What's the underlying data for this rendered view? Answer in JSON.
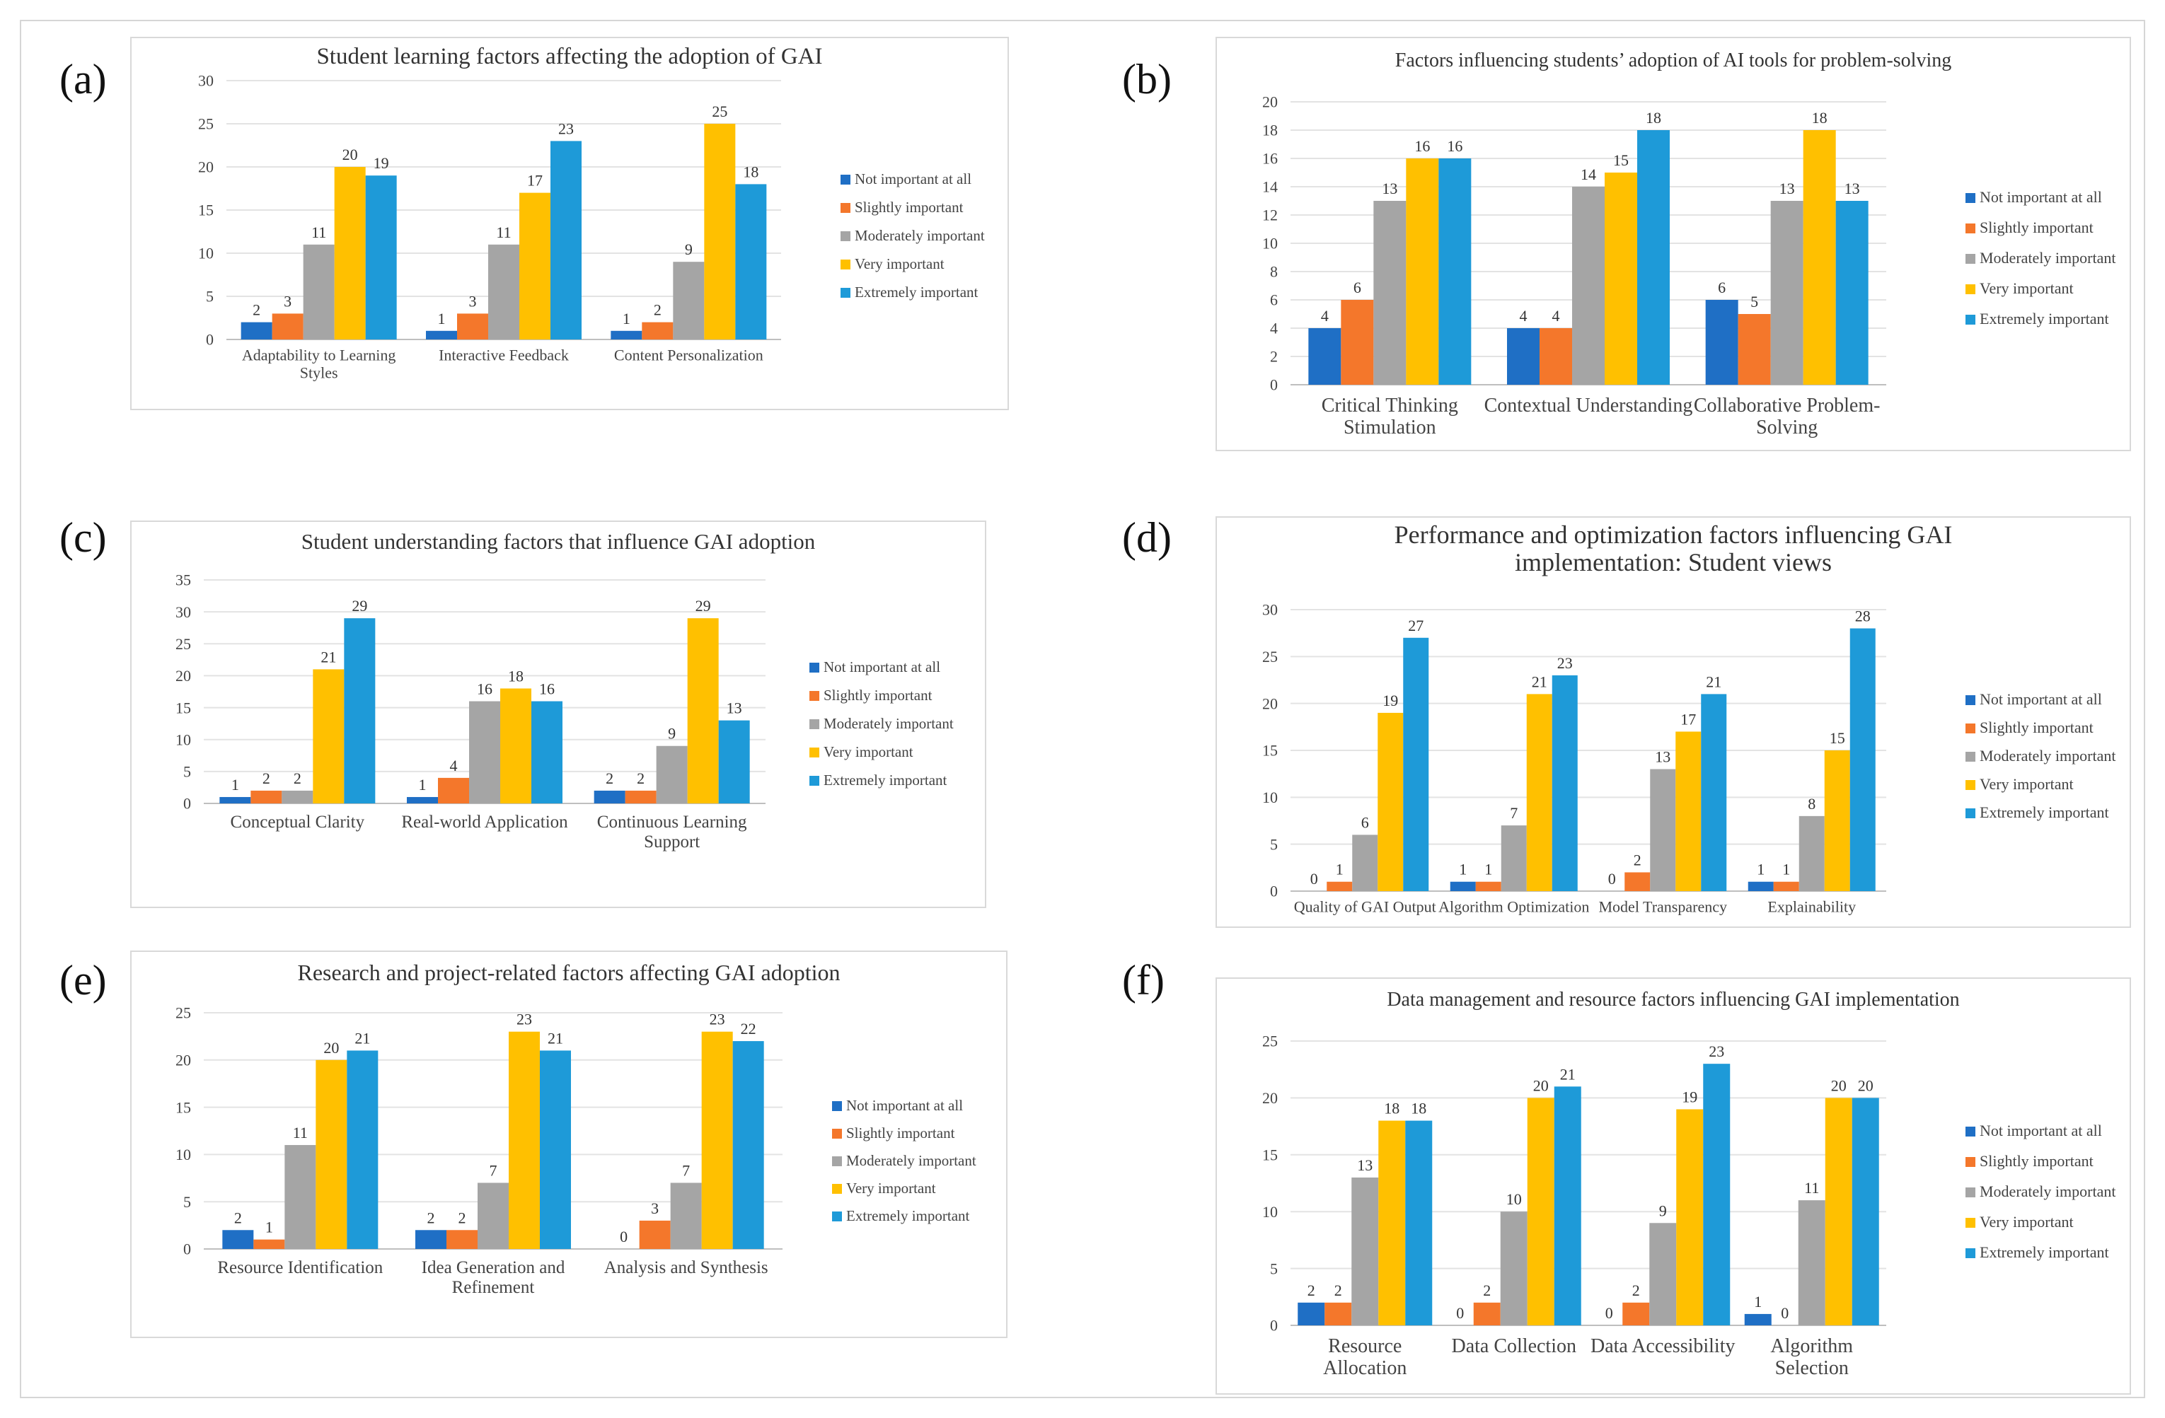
{
  "legend": {
    "labels": [
      "Not important at all",
      "Slightly important",
      "Moderately important",
      "Very important",
      "Extremely important"
    ],
    "colors": [
      "#1f6fc5",
      "#f4772b",
      "#a5a5a5",
      "#ffc000",
      "#1e9ad8"
    ]
  },
  "panels": [
    {
      "label": "(a)",
      "chart_data": {
        "type": "bar",
        "title": [
          "Student learning factors affecting the adoption of GAI"
        ],
        "categories": [
          [
            "Adaptability to Learning",
            "Styles"
          ],
          [
            "Interactive Feedback"
          ],
          [
            "Content Personalization"
          ]
        ],
        "series": [
          {
            "name": "Not important at all",
            "values": [
              2,
              1,
              1
            ]
          },
          {
            "name": "Slightly important",
            "values": [
              3,
              3,
              2
            ]
          },
          {
            "name": "Moderately important",
            "values": [
              11,
              11,
              9
            ]
          },
          {
            "name": "Very important",
            "values": [
              20,
              17,
              25
            ]
          },
          {
            "name": "Extremely important",
            "values": [
              19,
              23,
              18
            ]
          }
        ],
        "ylim": [
          0,
          30
        ],
        "yticks": [
          0,
          5,
          10,
          15,
          20,
          25,
          30
        ],
        "xlabel": "",
        "ylabel": "",
        "legend": "right"
      }
    },
    {
      "label": "(b)",
      "chart_data": {
        "type": "bar",
        "title": [
          "Factors influencing students’ adoption of AI tools for problem-solving"
        ],
        "categories": [
          [
            "Critical Thinking",
            "Stimulation"
          ],
          [
            "Contextual Understanding"
          ],
          [
            "Collaborative Problem-",
            "Solving"
          ]
        ],
        "series": [
          {
            "name": "Not important at all",
            "values": [
              4,
              4,
              6
            ]
          },
          {
            "name": "Slightly important",
            "values": [
              6,
              4,
              5
            ]
          },
          {
            "name": "Moderately important",
            "values": [
              13,
              14,
              13
            ]
          },
          {
            "name": "Very important",
            "values": [
              16,
              15,
              18
            ]
          },
          {
            "name": "Extremely important",
            "values": [
              16,
              18,
              13
            ]
          }
        ],
        "ylim": [
          0,
          20
        ],
        "yticks": [
          0,
          2,
          4,
          6,
          8,
          10,
          12,
          14,
          16,
          18,
          20
        ],
        "xlabel": "",
        "ylabel": "",
        "legend": "right"
      }
    },
    {
      "label": "(c)",
      "chart_data": {
        "type": "bar",
        "title": [
          "Student understanding factors that influence GAI adoption"
        ],
        "categories": [
          [
            "Conceptual Clarity"
          ],
          [
            "Real-world Application"
          ],
          [
            "Continuous Learning",
            "Support"
          ]
        ],
        "series": [
          {
            "name": "Not important at all",
            "values": [
              1,
              1,
              2
            ]
          },
          {
            "name": "Slightly important",
            "values": [
              2,
              4,
              2
            ]
          },
          {
            "name": "Moderately important",
            "values": [
              2,
              16,
              9
            ]
          },
          {
            "name": "Very important",
            "values": [
              21,
              18,
              29
            ]
          },
          {
            "name": "Extremely important",
            "values": [
              29,
              16,
              13
            ]
          }
        ],
        "ylim": [
          0,
          35
        ],
        "yticks": [
          0,
          5,
          10,
          15,
          20,
          25,
          30,
          35
        ],
        "xlabel": "",
        "ylabel": "",
        "legend": "right"
      }
    },
    {
      "label": "(d)",
      "chart_data": {
        "type": "bar",
        "title": [
          "Performance and optimization factors influencing GAI",
          "implementation: Student views"
        ],
        "categories": [
          [
            "Quality of GAI Output"
          ],
          [
            "Algorithm Optimization"
          ],
          [
            "Model Transparency"
          ],
          [
            "Explainability"
          ]
        ],
        "series": [
          {
            "name": "Not important at all",
            "values": [
              0,
              1,
              0,
              1
            ]
          },
          {
            "name": "Slightly important",
            "values": [
              1,
              1,
              2,
              1
            ]
          },
          {
            "name": "Moderately important",
            "values": [
              6,
              7,
              13,
              8
            ]
          },
          {
            "name": "Very important",
            "values": [
              19,
              21,
              17,
              15
            ]
          },
          {
            "name": "Extremely important",
            "values": [
              27,
              23,
              21,
              28
            ]
          }
        ],
        "ylim": [
          0,
          30
        ],
        "yticks": [
          0,
          5,
          10,
          15,
          20,
          25,
          30
        ],
        "xlabel": "",
        "ylabel": "",
        "legend": "right"
      }
    },
    {
      "label": "(e)",
      "chart_data": {
        "type": "bar",
        "title": [
          "Research and project-related factors affecting GAI adoption"
        ],
        "categories": [
          [
            "Resource Identification"
          ],
          [
            "Idea Generation and",
            "Refinement"
          ],
          [
            "Analysis and Synthesis"
          ]
        ],
        "series": [
          {
            "name": "Not important at all",
            "values": [
              2,
              2,
              0
            ]
          },
          {
            "name": "Slightly important",
            "values": [
              1,
              2,
              3
            ]
          },
          {
            "name": "Moderately important",
            "values": [
              11,
              7,
              7
            ]
          },
          {
            "name": "Very important",
            "values": [
              20,
              23,
              23
            ]
          },
          {
            "name": "Extremely important",
            "values": [
              21,
              21,
              22
            ]
          }
        ],
        "ylim": [
          0,
          25
        ],
        "yticks": [
          0,
          5,
          10,
          15,
          20,
          25
        ],
        "xlabel": "",
        "ylabel": "",
        "legend": "right"
      }
    },
    {
      "label": "(f)",
      "chart_data": {
        "type": "bar",
        "title": [
          "Data management and resource factors influencing GAI implementation"
        ],
        "categories": [
          [
            "Resource",
            "Allocation"
          ],
          [
            "Data Collection"
          ],
          [
            "Data Accessibility"
          ],
          [
            "Algorithm",
            "Selection"
          ]
        ],
        "series": [
          {
            "name": "Not important at all",
            "values": [
              2,
              0,
              0,
              1
            ]
          },
          {
            "name": "Slightly important",
            "values": [
              2,
              2,
              2,
              0
            ]
          },
          {
            "name": "Moderately important",
            "values": [
              13,
              10,
              9,
              11
            ]
          },
          {
            "name": "Very important",
            "values": [
              18,
              20,
              19,
              20
            ]
          },
          {
            "name": "Extremely important",
            "values": [
              18,
              21,
              23,
              20
            ]
          }
        ],
        "ylim": [
          0,
          25
        ],
        "yticks": [
          0,
          5,
          10,
          15,
          20,
          25
        ],
        "xlabel": "",
        "ylabel": "",
        "legend": "right"
      }
    }
  ]
}
